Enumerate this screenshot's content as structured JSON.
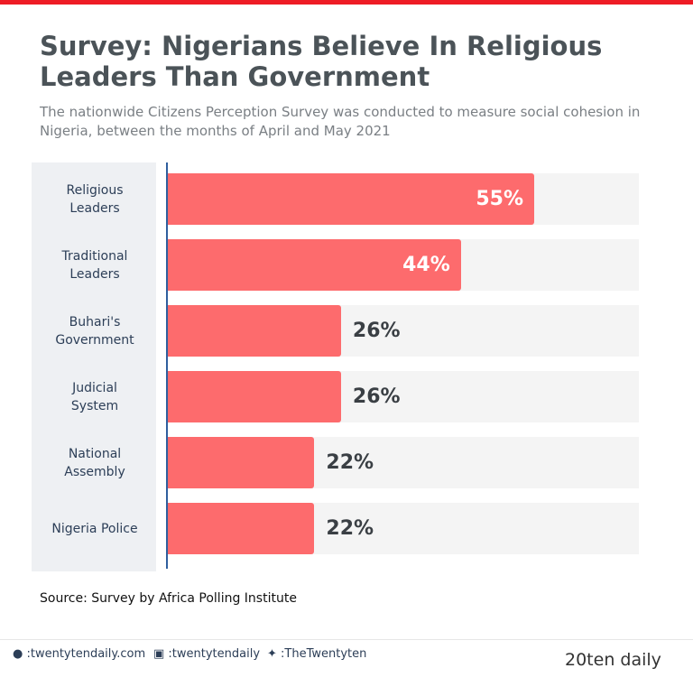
{
  "chart_data": {
    "type": "bar",
    "orientation": "horizontal",
    "title": "Survey: Nigerians Believe In Religious Leaders Than Government",
    "subtitle": "The nationwide Citizens Perception Survey was conducted to measure social cohesion in Nigeria, between the months of April and May 2021",
    "categories": [
      "Religious Leaders",
      "Traditional Leaders",
      "Buhari's Government",
      "Judicial System",
      "National Assembly",
      "Nigeria Police"
    ],
    "values": [
      55,
      44,
      26,
      26,
      22,
      22
    ],
    "value_labels": [
      "55%",
      "44%",
      "26%",
      "26%",
      "22%",
      "22%"
    ],
    "color": "#fd6b6d",
    "source": "Source:  Survey by Africa Polling Institute"
  },
  "footer": {
    "website": ":twentytendaily.com",
    "instagram": ":twentytendaily",
    "twitter": ":TheTwentyten",
    "logo": "20ten daily"
  }
}
